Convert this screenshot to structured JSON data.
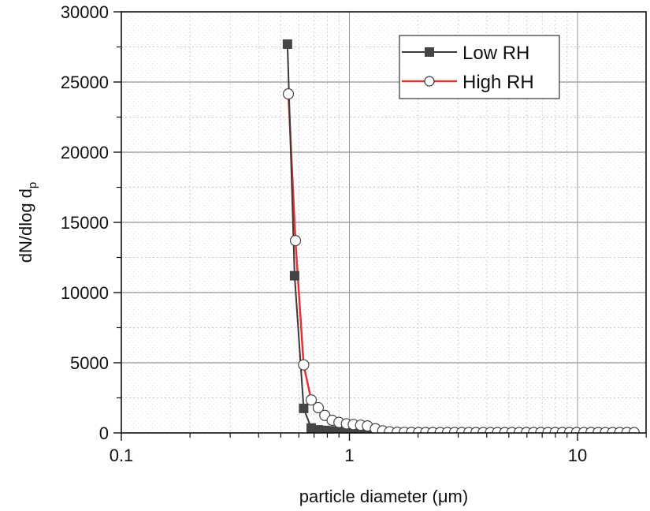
{
  "chart_data": {
    "type": "line",
    "title": "",
    "xlabel": "particle diameter (μm)",
    "ylabel": "dN/dlog d",
    "ylabel_subscript": "p",
    "xscale": "log",
    "xlim": [
      0.1,
      20
    ],
    "ylim": [
      0,
      30000
    ],
    "x_ticks": [
      {
        "value": 0.1,
        "label": "0.1"
      },
      {
        "value": 1,
        "label": "1"
      },
      {
        "value": 10,
        "label": "10"
      }
    ],
    "y_ticks": [
      {
        "value": 0,
        "label": "0"
      },
      {
        "value": 5000,
        "label": "5000"
      },
      {
        "value": 10000,
        "label": "10000"
      },
      {
        "value": 15000,
        "label": "15000"
      },
      {
        "value": 20000,
        "label": "20000"
      },
      {
        "value": 25000,
        "label": "25000"
      },
      {
        "value": 30000,
        "label": "30000"
      }
    ],
    "grid": true,
    "legend_position": "upper right",
    "series": [
      {
        "name": "Low RH",
        "color": "#3a3a3a",
        "marker": "filled-square",
        "x": [
          0.535,
          0.575,
          0.63,
          0.68,
          0.73,
          0.78,
          0.84,
          0.9,
          0.97,
          1.04,
          1.12,
          1.2,
          1.3
        ],
        "y": [
          27700,
          11200,
          1750,
          350,
          220,
          180,
          150,
          130,
          100,
          70,
          40,
          15,
          0
        ]
      },
      {
        "name": "High RH",
        "color": "#e8322e",
        "marker": "open-circle",
        "x": [
          0.54,
          0.58,
          0.63,
          0.68,
          0.73,
          0.78,
          0.84,
          0.9,
          0.97,
          1.04,
          1.12,
          1.2,
          1.3,
          1.4,
          1.5,
          1.62,
          1.74,
          1.87,
          2.01,
          2.16,
          2.32,
          2.5,
          2.69,
          2.89,
          3.11,
          3.34,
          3.59,
          3.86,
          4.15,
          4.46,
          4.8,
          5.16,
          5.55,
          5.97,
          6.42,
          6.9,
          7.42,
          7.98,
          8.58,
          9.22,
          9.91,
          10.66,
          11.46,
          12.32,
          13.25,
          14.25,
          15.32,
          16.47,
          17.71
        ],
        "y": [
          24150,
          13700,
          4850,
          2350,
          1800,
          1250,
          900,
          750,
          650,
          600,
          550,
          500,
          300,
          150,
          80,
          50,
          40,
          35,
          30,
          30,
          30,
          30,
          30,
          30,
          30,
          30,
          30,
          30,
          30,
          30,
          30,
          30,
          30,
          30,
          30,
          30,
          30,
          30,
          30,
          30,
          30,
          30,
          30,
          30,
          30,
          30,
          30,
          30,
          30
        ]
      }
    ]
  },
  "legend": {
    "items": [
      {
        "label": "Low RH"
      },
      {
        "label": "High RH"
      }
    ]
  },
  "axes": {
    "xlabel": "particle diameter (μm)",
    "ylabel_main": "dN/dlog d",
    "ylabel_sub": "p"
  }
}
